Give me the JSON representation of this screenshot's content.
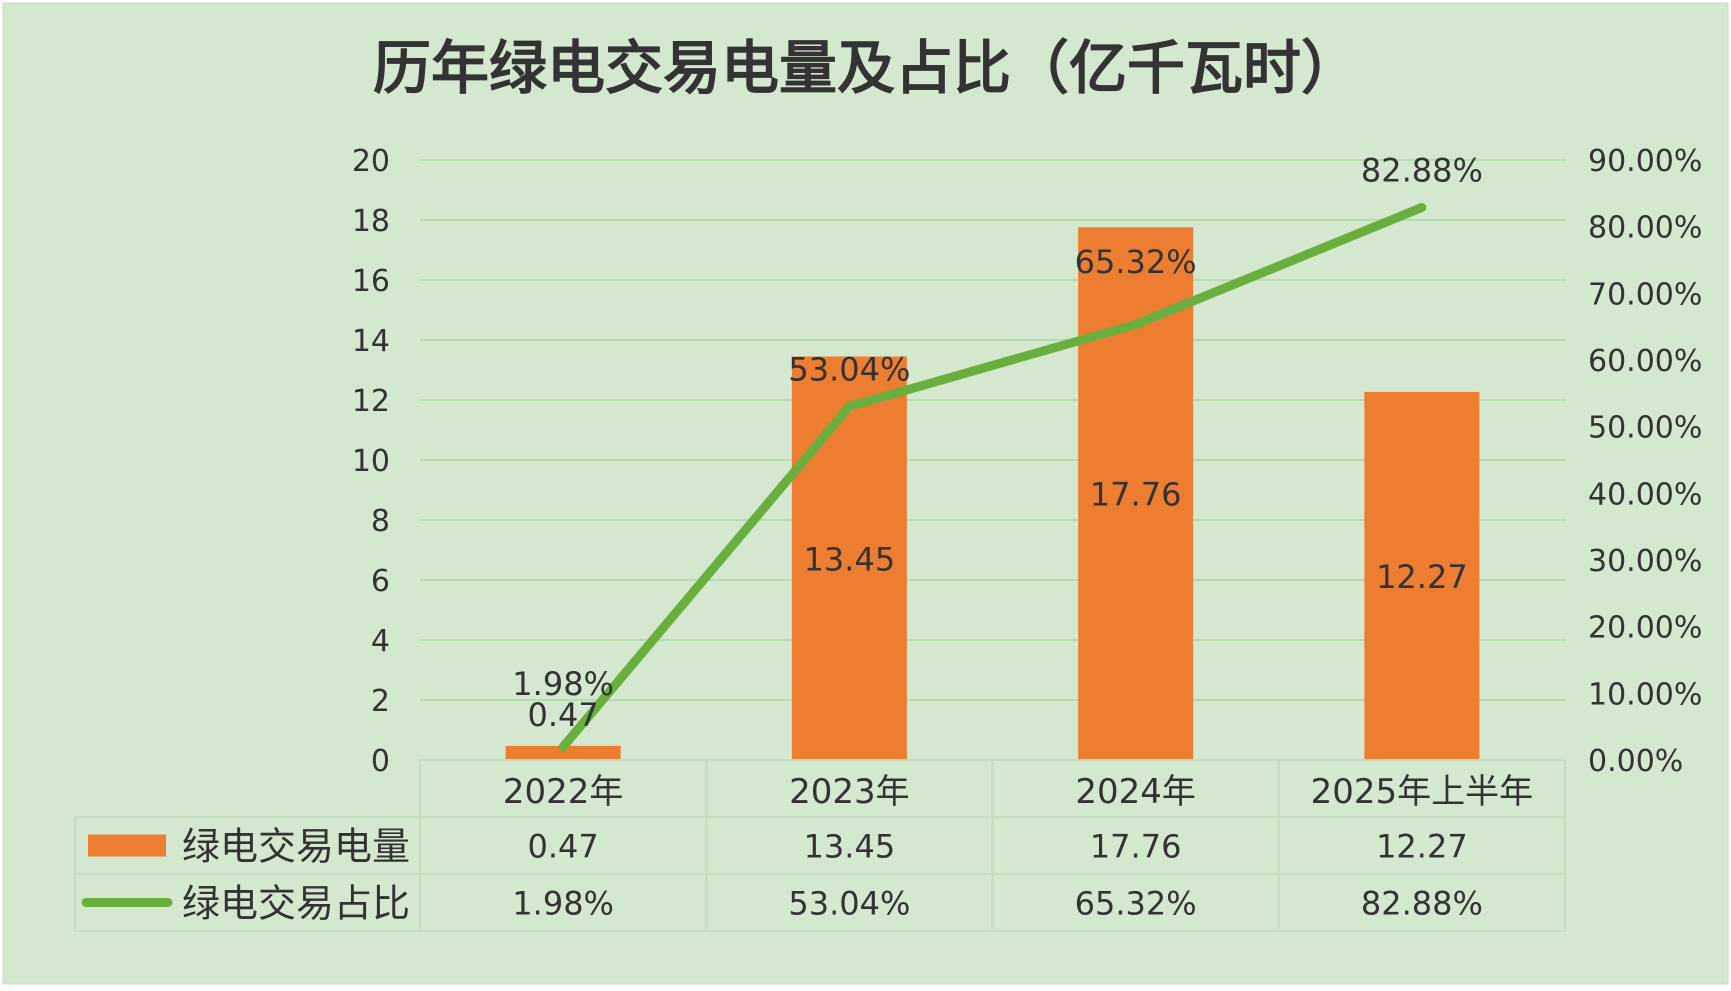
{
  "chart_data": {
    "type": "bar",
    "title": "历年绿电交易电量及占比（亿千瓦时）",
    "categories": [
      "2022年",
      "2023年",
      "2024年",
      "2025年上半年"
    ],
    "series": [
      {
        "name": "绿电交易电量",
        "type": "bar",
        "axis": "left",
        "color": "#ED7D31",
        "values": [
          0.47,
          13.45,
          17.76,
          12.27
        ],
        "labels": [
          "0.47",
          "13.45",
          "17.76",
          "12.27"
        ]
      },
      {
        "name": "绿电交易占比",
        "type": "line",
        "axis": "right",
        "color": "#6AAF3D",
        "values": [
          1.98,
          53.04,
          65.32,
          82.88
        ],
        "labels": [
          "1.98%",
          "53.04%",
          "65.32%",
          "82.88%"
        ]
      }
    ],
    "y_left": {
      "min": 0,
      "max": 20,
      "ticks": [
        "0",
        "2",
        "4",
        "6",
        "8",
        "10",
        "12",
        "14",
        "16",
        "18",
        "20"
      ]
    },
    "y_right": {
      "min": 0,
      "max": 90,
      "ticks": [
        "0.00%",
        "10.00%",
        "20.00%",
        "30.00%",
        "40.00%",
        "50.00%",
        "60.00%",
        "70.00%",
        "80.00%",
        "90.00%"
      ]
    },
    "grid": true,
    "legend": "data-table",
    "colors": {
      "background": "#D4E8CF",
      "gridline": "#B5DBB0",
      "text": "#333333"
    }
  }
}
